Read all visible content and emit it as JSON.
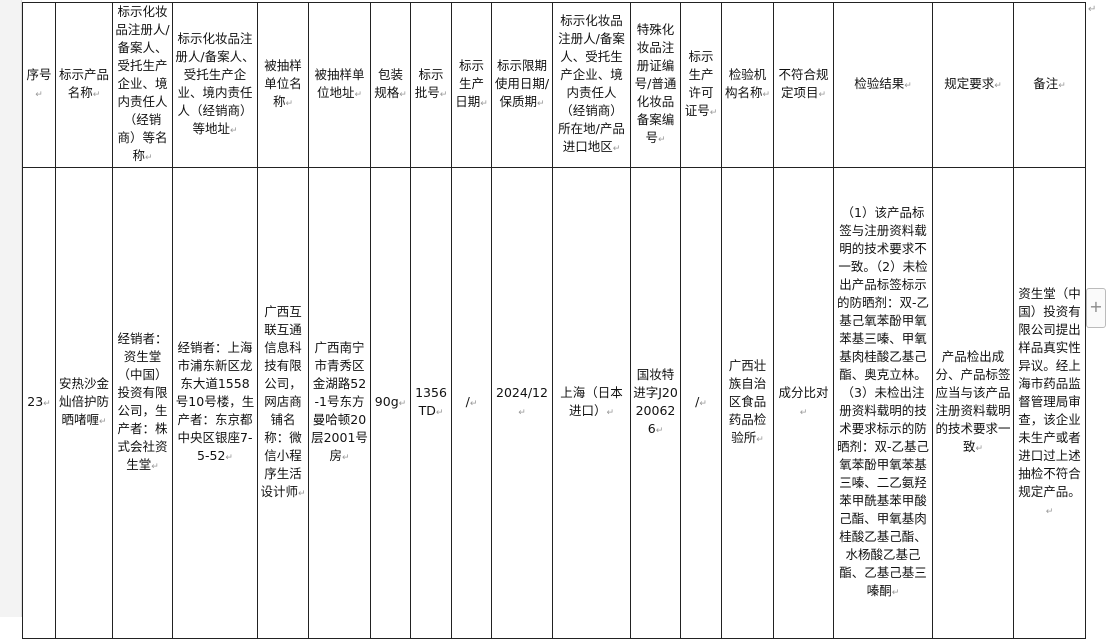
{
  "table": {
    "headers": [
      "序号",
      "标示产品名称",
      "标示化妆品注册人/备案人、受托生产企业、境内责任人（经销商）等名称",
      "标示化妆品注册人/备案人、受托生产企业、境内责任人（经销商）等地址",
      "被抽样单位名称",
      "被抽样单位地址",
      "包装规格",
      "标示批号",
      "标示生产日期",
      "标示限期使用日期/保质期",
      "标示化妆品注册人/备案人、受托生产企业、境内责任人（经销商）所在地/产品进口地区",
      "特殊化妆品注册证编号/普通化妆品备案编号",
      "标示生产许可证号",
      "检验机构名称",
      "不符合规定项目",
      "检验结果",
      "规定要求",
      "备注"
    ],
    "rows": [
      [
        "23",
        "安热沙金灿倍护防晒啫喱",
        "经销者：资生堂（中国）投资有限公司，生产者：株式会社资生堂",
        "经销者：上海市浦东新区龙东大道1558号10号楼，生产者：东京都中央区银座7-5-52",
        "广西互联互通信息科技有限公司，网店商铺名称：微信小程序生活设计师",
        "广西南宁市青秀区金湖路52-1号东方曼哈顿20层2001号房",
        "90g",
        "1356TD",
        "/",
        "2024/12",
        "上海（日本进口）",
        "国妆特进字J20200626",
        "/",
        "广西壮族自治区食品药品检验所",
        "成分比对",
        "（1）该产品标签与注册资料载明的技术要求不一致。（2）未检出产品标签标示的防晒剂：双-乙基己氧苯酚甲氧苯基三嗪、甲氧基肉桂酸乙基己酯、奥克立林。（3）未检出注册资料载明的技术要求标示的防晒剂：双-乙基己氧苯酚甲氧苯基三嗪、二乙氨羟苯甲酰基苯甲酸己酯、甲氧基肉桂酸乙基己酯、水杨酸乙基己酯、乙基己基三嗪酮",
        "产品检出成分、产品标签应当与该产品注册资料载明的技术要求一致",
        "资生堂（中国）投资有限公司提出样品真实性异议。经上海市药品监督管理局审查，该企业未生产或者进口过上述抽检不符合规定产品。"
      ]
    ]
  },
  "ui": {
    "add_button_icon": "plus-icon"
  }
}
